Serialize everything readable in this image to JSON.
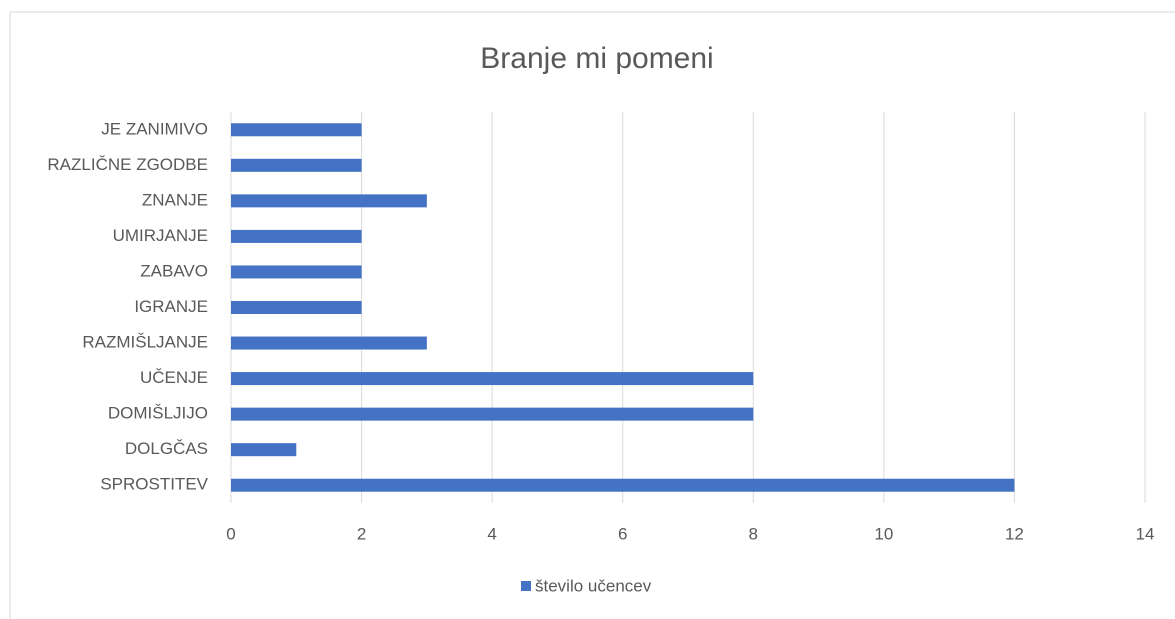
{
  "chart_data": {
    "type": "bar",
    "orientation": "horizontal",
    "title": "Branje mi pomeni",
    "categories": [
      "JE ZANIMIVO",
      "RAZLIČNE ZGODBE",
      "ZNANJE",
      "UMIRJANJE",
      "ZABAVO",
      "IGRANJE",
      "RAZMIŠLJANJE",
      "UČENJE",
      "DOMIŠLJIJO",
      "DOLGČAS",
      "SPROSTITEV"
    ],
    "series": [
      {
        "name": "število učencev",
        "color": "#4472c4",
        "values": [
          2,
          2,
          3,
          2,
          2,
          2,
          3,
          8,
          8,
          1,
          12
        ]
      }
    ],
    "xlim": [
      0,
      14
    ],
    "xticks": [
      0,
      2,
      4,
      6,
      8,
      10,
      12,
      14
    ],
    "grid": true,
    "legend": "bottom"
  }
}
